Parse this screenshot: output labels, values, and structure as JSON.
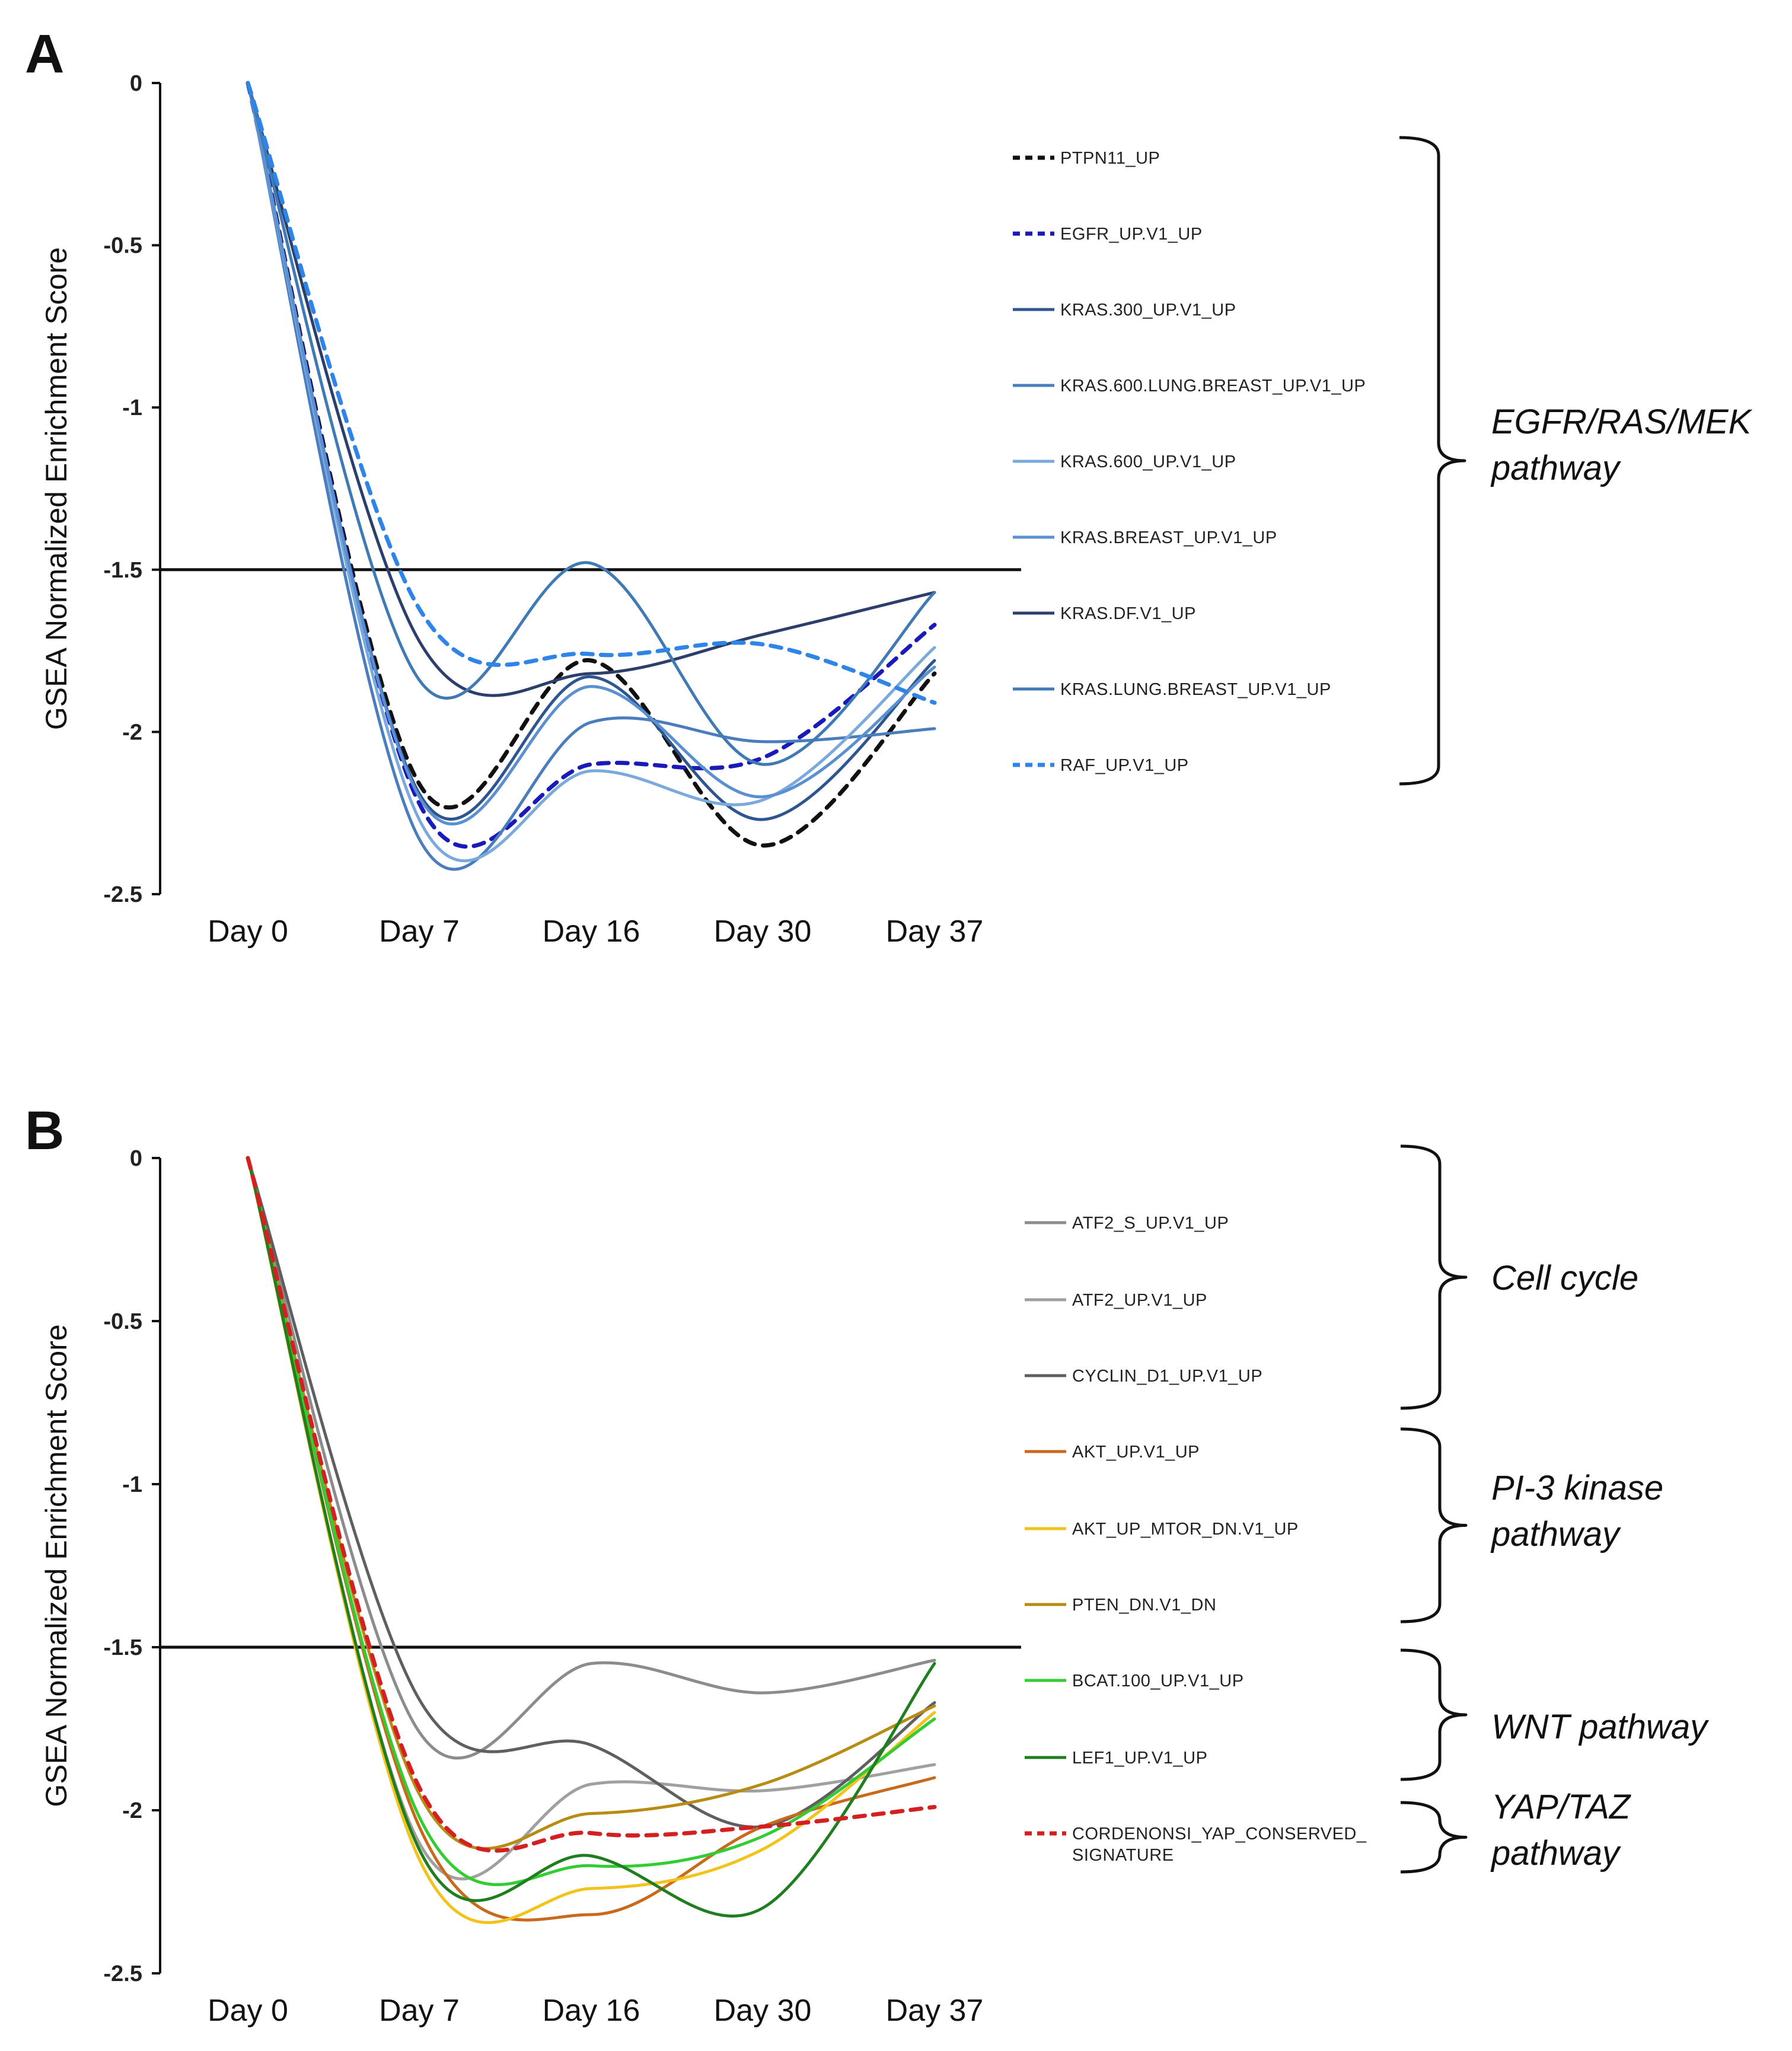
{
  "chart_data": [
    {
      "panel": "A",
      "type": "line",
      "title": "",
      "xlabel": "",
      "ylabel": "GSEA Normalized Enrichment Score",
      "categories": [
        "Day 0",
        "Day 7",
        "Day 16",
        "Day 30",
        "Day 37"
      ],
      "y_ticks": [
        "0",
        "-0.5",
        "-1",
        "-1.5",
        "-2",
        "-2.5"
      ],
      "ylim": [
        -2.5,
        0
      ],
      "reference_line": -1.5,
      "series": [
        {
          "name": "PTPN11_UP",
          "color": "#111111",
          "dashed": true,
          "values": [
            0,
            -2.16,
            -1.78,
            -2.35,
            -1.82
          ]
        },
        {
          "name": "EGFR_UP.V1_UP",
          "color": "#1a1ab8",
          "dashed": true,
          "values": [
            0,
            -2.22,
            -2.1,
            -2.08,
            -1.67
          ]
        },
        {
          "name": "KRAS.300_UP.V1_UP",
          "color": "#2d5590",
          "dashed": false,
          "values": [
            0,
            -2.19,
            -1.83,
            -2.27,
            -1.78
          ]
        },
        {
          "name": "KRAS.600.LUNG.BREAST_UP.V1_UP",
          "color": "#4a7dbd",
          "dashed": false,
          "values": [
            0,
            -2.33,
            -1.97,
            -2.03,
            -1.99
          ]
        },
        {
          "name": "KRAS.600_UP.V1_UP",
          "color": "#7aa9dc",
          "dashed": false,
          "values": [
            0,
            -2.27,
            -2.12,
            -2.21,
            -1.74
          ]
        },
        {
          "name": "KRAS.BREAST_UP.V1_UP",
          "color": "#5a8fd0",
          "dashed": false,
          "values": [
            0,
            -2.2,
            -1.86,
            -2.2,
            -1.8
          ]
        },
        {
          "name": "KRAS.DF.V1_UP",
          "color": "#2c3f6b",
          "dashed": false,
          "values": [
            0,
            -1.72,
            -1.82,
            -1.7,
            -1.57
          ]
        },
        {
          "name": "KRAS.LUNG.BREAST_UP.V1_UP",
          "color": "#3f7ab5",
          "dashed": false,
          "values": [
            0,
            -1.84,
            -1.48,
            -2.1,
            -1.57
          ]
        },
        {
          "name": "RAF_UP.V1_UP",
          "color": "#2f84e8",
          "dashed": true,
          "values": [
            0,
            -1.62,
            -1.76,
            -1.73,
            -1.91
          ]
        }
      ],
      "groups": [
        {
          "lines": [
            "EGFR/RAS/MEK",
            "pathway"
          ]
        }
      ]
    },
    {
      "panel": "B",
      "type": "line",
      "title": "",
      "xlabel": "",
      "ylabel": "GSEA Normalized Enrichment Score",
      "categories": [
        "Day 0",
        "Day 7",
        "Day 16",
        "Day 30",
        "Day 37"
      ],
      "y_ticks": [
        "0",
        "-0.5",
        "-1",
        "-1.5",
        "-2",
        "-2.5"
      ],
      "ylim": [
        -2.5,
        0
      ],
      "reference_line": -1.5,
      "series": [
        {
          "name": "ATF2_S_UP.V1_UP",
          "color": "#8c8c8c",
          "dashed": false,
          "values": [
            0,
            -1.76,
            -1.55,
            -1.64,
            -1.54
          ]
        },
        {
          "name": "ATF2_UP.V1_UP",
          "color": "#a0a0a0",
          "dashed": false,
          "values": [
            0,
            -2.1,
            -1.92,
            -1.94,
            -1.86
          ]
        },
        {
          "name": "CYCLIN_D1_UP.V1_UP",
          "color": "#5f5f5f",
          "dashed": false,
          "values": [
            0,
            -1.66,
            -1.8,
            -2.05,
            -1.67
          ]
        },
        {
          "name": "AKT_UP.V1_UP",
          "color": "#c8691c",
          "dashed": false,
          "values": [
            0,
            -2.05,
            -2.32,
            -2.05,
            -1.9
          ]
        },
        {
          "name": "AKT_UP_MTOR_DN.V1_UP",
          "color": "#f2c31a",
          "dashed": false,
          "values": [
            0,
            -2.15,
            -2.24,
            -2.12,
            -1.7
          ]
        },
        {
          "name": "PTEN_DN.V1_DN",
          "color": "#b88c14",
          "dashed": false,
          "values": [
            0,
            -1.95,
            -2.01,
            -1.92,
            -1.68
          ]
        },
        {
          "name": "BCAT.100_UP.V1_UP",
          "color": "#33cc33",
          "dashed": false,
          "values": [
            0,
            -2.02,
            -2.17,
            -2.08,
            -1.72
          ]
        },
        {
          "name": "LEF1_UP.V1_UP",
          "color": "#1f7f1f",
          "dashed": false,
          "values": [
            0,
            -2.12,
            -2.14,
            -2.3,
            -1.55
          ]
        },
        {
          "name": "CORDENONSI_YAP_CONSERVED_ SIGNATURE",
          "label_lines": [
            "CORDENONSI_YAP_CONSERVED_",
            "SIGNATURE"
          ],
          "color": "#d42020",
          "dashed": true,
          "values": [
            0,
            -1.93,
            -2.07,
            -2.05,
            -1.99
          ]
        }
      ],
      "groups": [
        {
          "lines": [
            "Cell cycle"
          ]
        },
        {
          "lines": [
            "PI-3 kinase",
            "pathway"
          ]
        },
        {
          "lines": [
            "WNT pathway"
          ]
        },
        {
          "lines": [
            "YAP/TAZ",
            "pathway"
          ]
        }
      ]
    }
  ]
}
